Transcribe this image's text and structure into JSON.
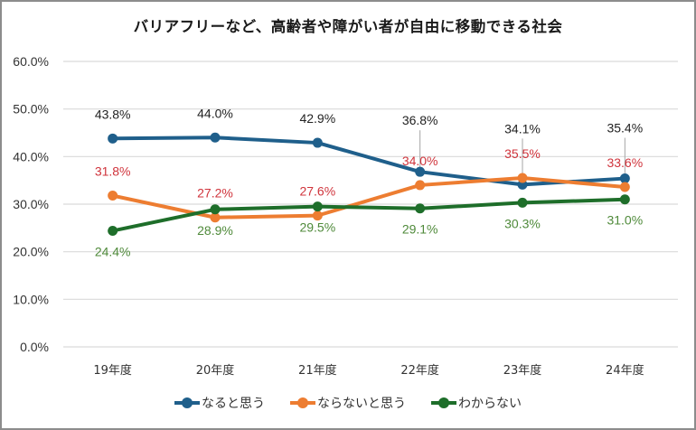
{
  "chart_data": {
    "type": "line",
    "title": "バリアフリーなど、高齢者や障がい者が自由に移動できる社会",
    "xlabel": "",
    "ylabel": "",
    "categories": [
      "19年度",
      "20年度",
      "21年度",
      "22年度",
      "23年度",
      "24年度"
    ],
    "ylim": [
      0,
      60
    ],
    "yticks": [
      "0.0%",
      "10.0%",
      "20.0%",
      "30.0%",
      "40.0%",
      "50.0%",
      "60.0%"
    ],
    "grid": true,
    "legend": "bottom",
    "series": [
      {
        "name": "なると思う",
        "color": "#1f5f8b",
        "label_color": "#222222",
        "values": [
          43.8,
          44.0,
          42.9,
          36.8,
          34.1,
          35.4
        ],
        "labels": [
          "43.8%",
          "44.0%",
          "42.9%",
          "36.8%",
          "34.1%",
          "35.4%"
        ]
      },
      {
        "name": "ならないと思う",
        "color": "#ed7d31",
        "label_color": "#d0343c",
        "values": [
          31.8,
          27.2,
          27.6,
          34.0,
          35.5,
          33.6
        ],
        "labels": [
          "31.8%",
          "27.2%",
          "27.6%",
          "34.0%",
          "35.5%",
          "33.6%"
        ]
      },
      {
        "name": "わからない",
        "color": "#1e6e2a",
        "label_color": "#4f8a3a",
        "values": [
          24.4,
          28.9,
          29.5,
          29.1,
          30.3,
          31.0
        ],
        "labels": [
          "24.4%",
          "28.9%",
          "29.5%",
          "29.1%",
          "30.3%",
          "31.0%"
        ]
      }
    ]
  }
}
